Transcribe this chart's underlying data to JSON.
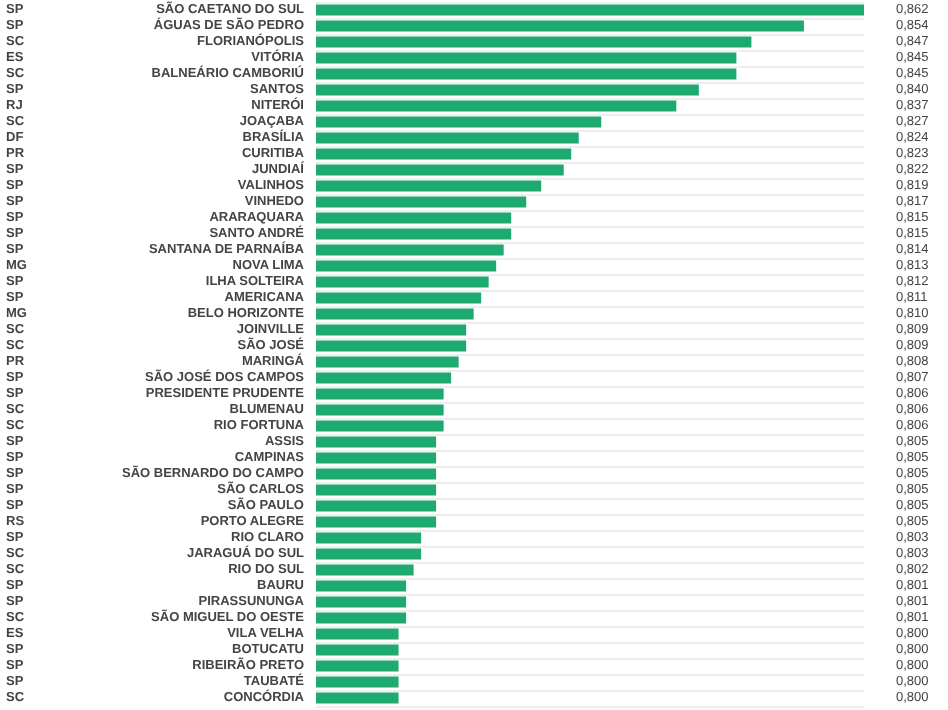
{
  "chart_data": {
    "type": "bar",
    "orientation": "horizontal",
    "color": "#1fa971",
    "grid": "y",
    "categories": [
      "SÃO CAETANO DO SUL",
      "ÁGUAS DE SÃO PEDRO",
      "FLORIANÓPOLIS",
      "VITÓRIA",
      "BALNEÁRIO CAMBORIÚ",
      "SANTOS",
      "NITERÓI",
      "JOAÇABA",
      "BRASÍLIA",
      "CURITIBA",
      "JUNDIAÍ",
      "VALINHOS",
      "VINHEDO",
      "ARARAQUARA",
      "SANTO ANDRÉ",
      "SANTANA DE PARNAÍBA",
      "NOVA LIMA",
      "ILHA SOLTEIRA",
      "AMERICANA",
      "BELO HORIZONTE",
      "JOINVILLE",
      "SÃO JOSÉ",
      "MARINGÁ",
      "SÃO JOSÉ DOS CAMPOS",
      "PRESIDENTE PRUDENTE",
      "BLUMENAU",
      "RIO FORTUNA",
      "ASSIS",
      "CAMPINAS",
      "SÃO BERNARDO DO CAMPO",
      "SÃO CARLOS",
      "SÃO PAULO",
      "PORTO ALEGRE",
      "RIO CLARO",
      "JARAGUÁ DO SUL",
      "RIO DO SUL",
      "BAURU",
      "PIRASSUNUNGA",
      "SÃO MIGUEL DO OESTE",
      "VILA VELHA",
      "BOTUCATU",
      "RIBEIRÃO PRETO",
      "TAUBATÉ",
      "CONCÓRDIA"
    ],
    "values": [
      0.862,
      0.854,
      0.847,
      0.845,
      0.845,
      0.84,
      0.837,
      0.827,
      0.824,
      0.823,
      0.822,
      0.819,
      0.817,
      0.815,
      0.815,
      0.814,
      0.813,
      0.812,
      0.811,
      0.81,
      0.809,
      0.809,
      0.808,
      0.807,
      0.806,
      0.806,
      0.806,
      0.805,
      0.805,
      0.805,
      0.805,
      0.805,
      0.805,
      0.803,
      0.803,
      0.802,
      0.801,
      0.801,
      0.801,
      0.8,
      0.8,
      0.8,
      0.8,
      0.8
    ],
    "value_labels": [
      "0,862",
      "0,854",
      "0,847",
      "0,845",
      "0,845",
      "0,840",
      "0,837",
      "0,827",
      "0,824",
      "0,823",
      "0,822",
      "0,819",
      "0,817",
      "0,815",
      "0,815",
      "0,814",
      "0,813",
      "0,812",
      "0,811",
      "0,810",
      "0,809",
      "0,809",
      "0,808",
      "0,807",
      "0,806",
      "0,806",
      "0,806",
      "0,805",
      "0,805",
      "0,805",
      "0,805",
      "0,805",
      "0,805",
      "0,803",
      "0,803",
      "0,802",
      "0,801",
      "0,801",
      "0,801",
      "0,800",
      "0,800",
      "0,800",
      "0,800",
      "0,800"
    ],
    "xlim": [
      0.789,
      0.862
    ],
    "annotations": [
      "SP",
      "SP",
      "SC",
      "ES",
      "SC",
      "SP",
      "RJ",
      "SC",
      "DF",
      "PR",
      "SP",
      "SP",
      "SP",
      "SP",
      "SP",
      "SP",
      "MG",
      "SP",
      "SP",
      "MG",
      "SC",
      "SC",
      "PR",
      "SP",
      "SP",
      "SC",
      "SC",
      "SP",
      "SP",
      "SP",
      "SP",
      "SP",
      "RS",
      "SP",
      "SC",
      "SC",
      "SP",
      "SP",
      "SC",
      "ES",
      "SP",
      "SP",
      "SP",
      "SC"
    ]
  }
}
